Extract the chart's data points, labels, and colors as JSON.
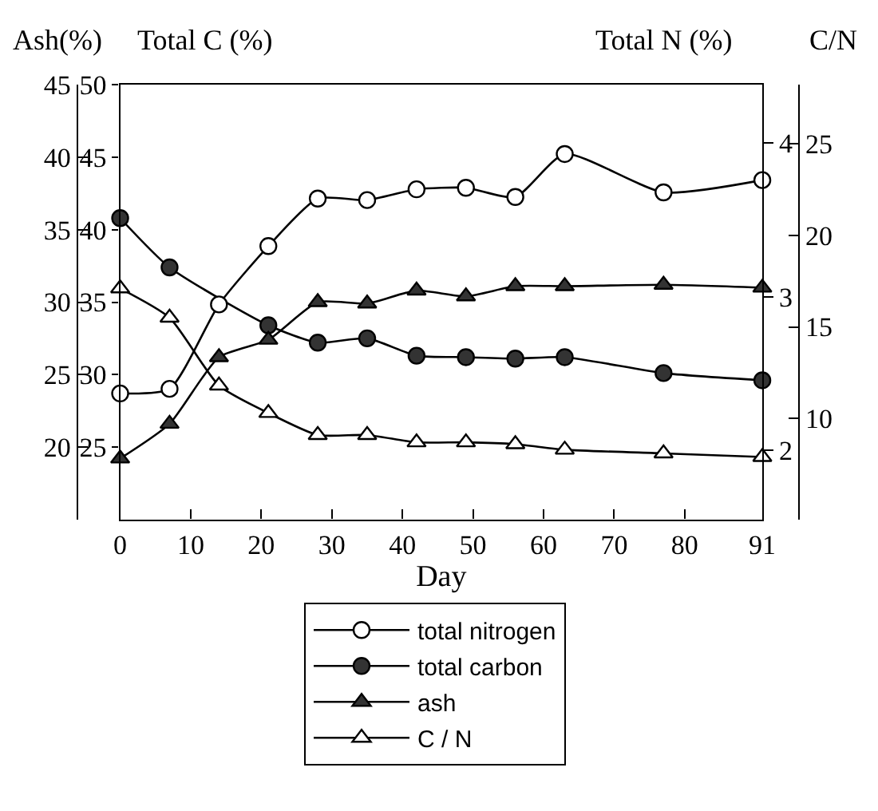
{
  "chart_data": [
    {
      "type": "line",
      "x": [
        0,
        7,
        14,
        21,
        28,
        35,
        42,
        49,
        56,
        63,
        77,
        91
      ],
      "xlabel": "Day",
      "xlim": [
        0,
        91
      ],
      "xticks": [
        0,
        10,
        20,
        30,
        40,
        50,
        60,
        70,
        80,
        91
      ],
      "ylabel": "Total C (%)",
      "ylim": [
        20,
        50
      ],
      "yticks": [
        25,
        30,
        35,
        40,
        45,
        50
      ],
      "y2label": "Total N (%)",
      "y2lim": [
        1.55,
        4.38
      ],
      "y2ticks": [
        2,
        3,
        4
      ],
      "y3label": "Ash(%)",
      "y3lim": [
        15,
        45
      ],
      "y3ticks": [
        20,
        25,
        30,
        35,
        40,
        45
      ],
      "legend": "bottom",
      "line_style": "solid",
      "marker": "circle",
      "series": [
        {
          "name": "total nitrogen",
          "axis": "y2",
          "color": "#ffffff",
          "values": [
            2.37,
            2.4,
            2.95,
            3.33,
            3.64,
            3.63,
            3.7,
            3.71,
            3.65,
            3.93,
            3.68,
            3.76
          ]
        },
        {
          "name": "total carbon",
          "color": "#333333",
          "values": [
            40.8,
            37.4,
            null,
            33.4,
            32.2,
            32.5,
            31.3,
            31.2,
            31.1,
            31.2,
            30.1,
            29.6
          ]
        },
        {
          "name": "ash",
          "axis": "y3",
          "color": "#333333",
          "marker": "triangle",
          "values": [
            19.2,
            21.6,
            26.2,
            27.4,
            30.0,
            29.9,
            30.8,
            30.4,
            31.1,
            31.1,
            31.2,
            31.0
          ]
        }
      ]
    },
    {
      "type": "line",
      "x": [
        0,
        7,
        14,
        21,
        28,
        35,
        42,
        49,
        56,
        63,
        77,
        91
      ],
      "xlim": [
        0,
        91
      ],
      "tick_labels": "y",
      "ylabel": "C/N",
      "ylim": [
        4.5,
        28.2
      ],
      "yticks": [
        10,
        15,
        20,
        25
      ],
      "legend": "bottom",
      "line_style": "solid",
      "marker": "triangle",
      "series": [
        {
          "name": "C / N",
          "color": "#ffffff",
          "values": [
            17.1,
            15.5,
            11.8,
            10.3,
            9.1,
            9.1,
            8.7,
            8.7,
            8.6,
            8.3,
            8.1,
            7.9
          ]
        }
      ]
    }
  ]
}
